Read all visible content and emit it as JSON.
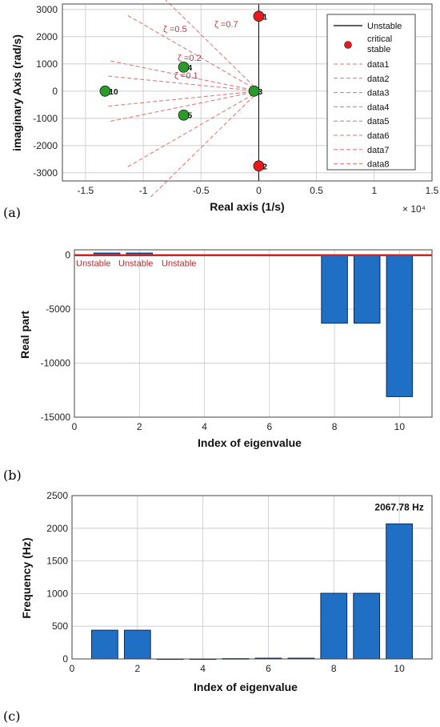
{
  "chart_data": [
    {
      "panel": "(a)",
      "type": "scatter",
      "xlabel": "Real axis  (1/s)",
      "ylabel": "imaginary Axis  (rad/s)",
      "x_multiplier": "× 10⁴",
      "xlim": [
        -1.7,
        1.5
      ],
      "ylim": [
        -3300,
        3200
      ],
      "xticks": [
        -1.5,
        -1,
        -0.5,
        0,
        0.5,
        1,
        1.5
      ],
      "xtick_labels": [
        "-1.5",
        "-1",
        "-0.5",
        "0",
        "0.5",
        "1",
        "1.5"
      ],
      "yticks": [
        3000,
        2000,
        1000,
        0,
        -1000,
        -2000,
        -3000
      ],
      "ytick_labels": [
        "3000",
        "2000",
        "1000",
        "0",
        "-1000",
        "-2000",
        "-3000"
      ],
      "grid": true,
      "legend_position": "top-right",
      "legend": [
        "Unstable",
        "critical stable",
        "data1",
        "data2",
        "data3",
        "data4",
        "data5",
        "data6",
        "data7",
        "data8"
      ],
      "points": [
        {
          "label": "1",
          "x": 0.0,
          "y": 2750,
          "color": "#e8191b"
        },
        {
          "label": "2",
          "x": 0.0,
          "y": -2750,
          "color": "#e8191b"
        },
        {
          "label": "3",
          "x": -0.04,
          "y": 0,
          "color": "#2a9a2a"
        },
        {
          "label": "4",
          "x": -0.65,
          "y": 880,
          "color": "#2a9a2a"
        },
        {
          "label": "5",
          "x": -0.65,
          "y": -880,
          "color": "#2a9a2a"
        },
        {
          "label": "10",
          "x": -1.33,
          "y": 0,
          "color": "#2a9a2a"
        }
      ],
      "damping_lines": [
        {
          "label": "ζ =0.7",
          "slope_deg": 45.6
        },
        {
          "label": "ζ =0.5",
          "slope_deg": 60
        },
        {
          "label": "ζ =0.2",
          "slope_deg": 78.5
        },
        {
          "label": "ζ =0.1",
          "slope_deg": 84.3
        }
      ]
    },
    {
      "panel": "(b)",
      "type": "bar",
      "xlabel": "Index of eigenvalue",
      "ylabel": "Real part",
      "categories": [
        1,
        2,
        3,
        4,
        5,
        6,
        7,
        8,
        9,
        10
      ],
      "values": [
        200,
        200,
        0,
        0,
        -30,
        -60,
        -60,
        -6300,
        -6300,
        -13100
      ],
      "xlim": [
        0,
        11
      ],
      "ylim": [
        -15000,
        500
      ],
      "xticks": [
        0,
        2,
        4,
        6,
        8,
        10
      ],
      "yticks": [
        0,
        -5000,
        -10000,
        -15000
      ],
      "ytick_labels": [
        "0",
        "-5000",
        "-10000",
        "-15000"
      ],
      "grid": true,
      "annotations": [
        "Unstable",
        "Unstable",
        "Unstable"
      ]
    },
    {
      "panel": "(c)",
      "type": "bar",
      "xlabel": "Index of eigenvalue",
      "ylabel": "Frequency  (Hz)",
      "categories": [
        1,
        2,
        3,
        4,
        5,
        6,
        7,
        8,
        9,
        10
      ],
      "values": [
        440,
        440,
        0,
        0,
        5,
        12,
        12,
        1005,
        1005,
        2067.78
      ],
      "xlim": [
        0,
        11
      ],
      "ylim": [
        0,
        2500
      ],
      "xticks": [
        0,
        2,
        4,
        6,
        8,
        10
      ],
      "yticks": [
        0,
        500,
        1000,
        1500,
        2000,
        2500
      ],
      "ytick_labels": [
        "0",
        "500",
        "1000",
        "1500",
        "2000",
        "2500"
      ],
      "grid": true,
      "annotation": "2067.78 Hz"
    }
  ],
  "colors": {
    "bar_fill": "#1f6fc5",
    "bar_edge": "#0b2a55",
    "unstable_line": "#d81e1e",
    "critical_point": "#e8191b",
    "stable_point": "#2a9a2a",
    "damping_line": "#e07070",
    "grid": "#c8c8c8"
  }
}
